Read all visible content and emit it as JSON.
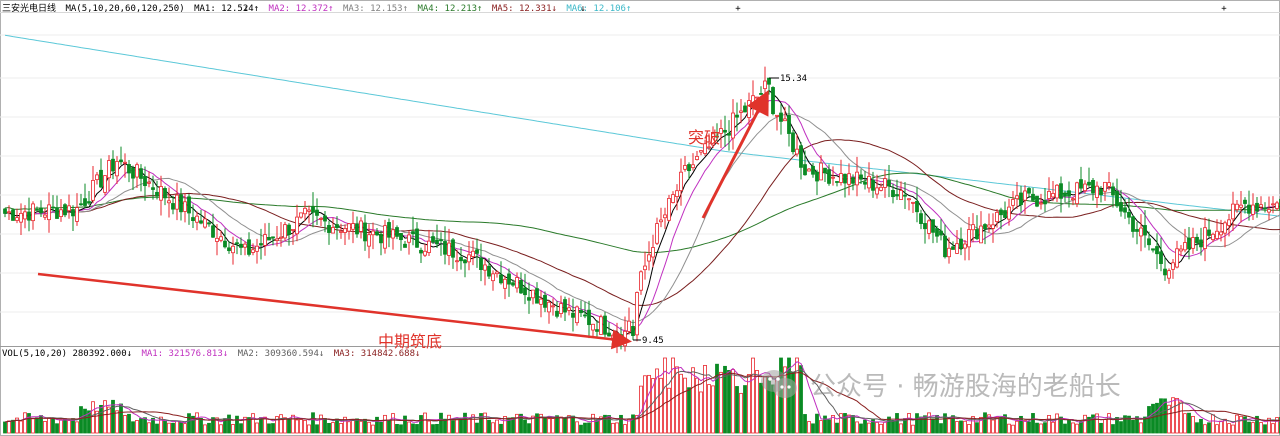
{
  "header": {
    "stock_name": "三安光电日线",
    "ma_params": "MA(5,10,20,60,120,250)",
    "ma1": "MA1: 12.524↑",
    "ma2": "MA2: 12.372↑",
    "ma3": "MA3: 12.153↑",
    "ma4": "MA4: 12.213↑",
    "ma5": "MA5: 12.331↓",
    "ma6": "MA6: 12.106↑"
  },
  "volume_header": {
    "vol": "VOL(5,10,20) 280392.000↓",
    "ma1": "MA1: 321576.813↓",
    "ma2": "MA2: 309360.594↓",
    "ma3": "MA3: 314842.688↓"
  },
  "annotations": {
    "breakout": "突破",
    "bottoming": "中期筑底"
  },
  "watermark": "公众号 · 畅游股海的老船长",
  "colors": {
    "up": "#e8262c",
    "down": "#0a8a24",
    "arrow": "#e0332b",
    "ma1": "#000000",
    "ma2": "#c030c0",
    "ma3": "#909090",
    "ma4": "#2a7a2a",
    "ma5": "#7a1f1f",
    "ma6": "#5cc8d8"
  },
  "chart_data": {
    "type": "candlestick",
    "high_label": "15.34",
    "low_label": "9.45",
    "high_value": 15.34,
    "low_value": 9.45,
    "key_points": [
      {
        "day": 0,
        "close": 12.3
      },
      {
        "day": 18,
        "close": 12.4
      },
      {
        "day": 28,
        "close": 13.5
      },
      {
        "day": 60,
        "close": 11.4
      },
      {
        "day": 75,
        "close": 12.2
      },
      {
        "day": 115,
        "close": 11.4
      },
      {
        "day": 140,
        "close": 10.1
      },
      {
        "day": 155,
        "close": 9.6
      },
      {
        "day": 162,
        "close": 11.7
      },
      {
        "day": 170,
        "close": 13.2
      },
      {
        "day": 190,
        "close": 15.1
      },
      {
        "day": 200,
        "close": 13.3
      },
      {
        "day": 225,
        "close": 12.8
      },
      {
        "day": 235,
        "close": 11.5
      },
      {
        "day": 255,
        "close": 12.6
      },
      {
        "day": 275,
        "close": 12.9
      },
      {
        "day": 290,
        "close": 11.1
      },
      {
        "day": 310,
        "close": 12.5
      }
    ]
  }
}
